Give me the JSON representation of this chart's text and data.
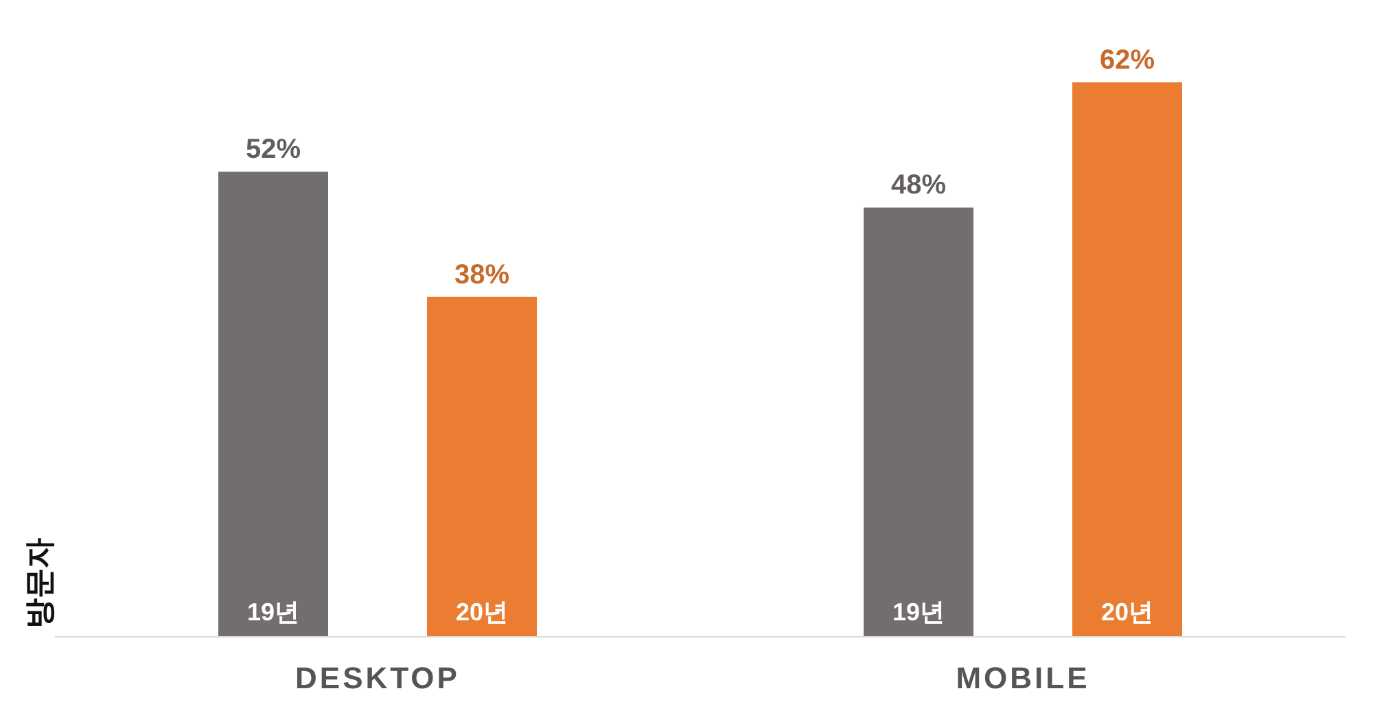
{
  "chart_data": {
    "type": "bar",
    "ylabel": "방문자",
    "categories": [
      "DESKTOP",
      "MOBILE"
    ],
    "legend": false,
    "grid": false,
    "series": [
      {
        "name": "19년",
        "color": "#736e6e",
        "values": [
          52,
          48
        ],
        "value_labels": [
          "52%",
          "48%"
        ]
      },
      {
        "name": "20년",
        "color": "#ea7d32",
        "values": [
          38,
          62
        ],
        "value_labels": [
          "38%",
          "62%"
        ]
      }
    ]
  }
}
